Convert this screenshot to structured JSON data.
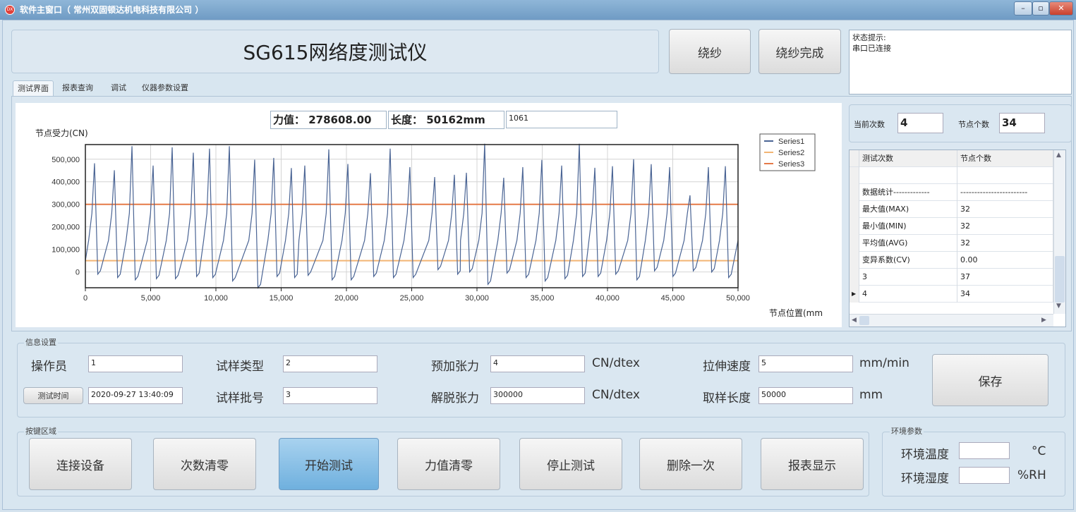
{
  "window": {
    "title": "软件主窗口（ 常州双固顿达机电科技有限公司 ）",
    "icon": "app-logo-icon",
    "controls": [
      "minimize-icon",
      "maximize-icon",
      "close-icon"
    ]
  },
  "header": {
    "title": "SG615网络度测试仪",
    "wind_button": "绕纱",
    "wind_done_button": "绕纱完成",
    "status_label": "状态提示:",
    "status_text": "串口已连接"
  },
  "tabs": [
    {
      "label": "测试界面",
      "selected": true
    },
    {
      "label": "报表查询"
    },
    {
      "label": "调试"
    },
    {
      "label": "仪器参数设置"
    }
  ],
  "readouts": {
    "force_label": "力值：",
    "force_value": "278608.00",
    "length_label": "长度：",
    "length_value": "50162mm",
    "extra_value": "1061"
  },
  "counters": {
    "current_label": "当前次数",
    "current_value": "4",
    "nodes_label": "节点个数",
    "nodes_value": "34"
  },
  "table": {
    "headers": [
      "测试次数",
      "节点个数"
    ],
    "rows": [
      [
        "",
        ""
      ],
      [
        "数据统计-------------",
        "------------------------"
      ],
      [
        "最大值(MAX)",
        "32"
      ],
      [
        "最小值(MIN)",
        "32"
      ],
      [
        "平均值(AVG)",
        "32"
      ],
      [
        "变异系数(CV)",
        "0.00"
      ],
      [
        "3",
        "37"
      ],
      [
        "4",
        "34"
      ]
    ],
    "current_row": 7
  },
  "info": {
    "group_title": "信息设置",
    "operator_label": "操作员",
    "operator_value": "1",
    "test_time_button": "测试时间",
    "test_time_value": "2020-09-27 13:40:09",
    "sample_type_label": "试样类型",
    "sample_type_value": "2",
    "batch_label": "试样批号",
    "batch_value": "3",
    "pretension_label": "预加张力",
    "pretension_value": "4",
    "pretension_unit": "CN/dtex",
    "release_label": "解脱张力",
    "release_value": "300000",
    "release_unit": "CN/dtex",
    "speed_label": "拉伸速度",
    "speed_value": "5",
    "speed_unit": "mm/min",
    "sample_len_label": "取样长度",
    "sample_len_value": "50000",
    "sample_len_unit": "mm",
    "save_button": "保存"
  },
  "keys": {
    "group_title": "按键区域",
    "buttons": [
      "连接设备",
      "次数清零",
      "开始测试",
      "力值清零",
      "停止测试",
      "删除一次",
      "报表显示"
    ],
    "active_index": 2
  },
  "env": {
    "group_title": "环境参数",
    "temp_label": "环境温度",
    "temp_value": "",
    "temp_unit": "°C",
    "humidity_label": "环境湿度",
    "humidity_value": "",
    "humidity_unit": "%RH"
  },
  "chart_data": {
    "type": "line",
    "ylabel": "节点受力(CN)",
    "xlabel": "节点位置(mm",
    "xlim": [
      0,
      50000
    ],
    "ylim": [
      -70000,
      565000
    ],
    "xticks": [
      0,
      5000,
      10000,
      15000,
      20000,
      25000,
      30000,
      35000,
      40000,
      45000,
      50000
    ],
    "xtick_labels": [
      "0",
      "5,000",
      "10,000",
      "15,000",
      "20,000",
      "25,000",
      "30,000",
      "35,000",
      "40,000",
      "45,000",
      "50,000"
    ],
    "yticks": [
      0,
      100000,
      200000,
      300000,
      400000,
      500000
    ],
    "ytick_labels": [
      "0",
      "100,000",
      "200,000",
      "300,000",
      "400,000",
      "500,000"
    ],
    "grid": true,
    "legend": "top-right",
    "series": [
      {
        "name": "Series1",
        "color": "#4a6494",
        "start": [
          0,
          50000
        ],
        "end": [
          50000,
          140000
        ],
        "peaks": [
          [
            700,
            482000
          ],
          [
            2220,
            451000
          ],
          [
            3570,
            558000
          ],
          [
            5190,
            472000
          ],
          [
            6650,
            553000
          ],
          [
            8270,
            529000
          ],
          [
            9510,
            547000
          ],
          [
            11030,
            558000
          ],
          [
            12970,
            498000
          ],
          [
            14430,
            506000
          ],
          [
            15780,
            461000
          ],
          [
            16810,
            472000
          ],
          [
            18650,
            544000
          ],
          [
            20110,
            479000
          ],
          [
            21840,
            438000
          ],
          [
            23350,
            547000
          ],
          [
            24860,
            465000
          ],
          [
            26760,
            421000
          ],
          [
            28270,
            431000
          ],
          [
            29190,
            440000
          ],
          [
            30590,
            569000
          ],
          [
            32050,
            418000
          ],
          [
            33510,
            465000
          ],
          [
            34970,
            497000
          ],
          [
            36490,
            472000
          ],
          [
            37840,
            569000
          ],
          [
            39030,
            462000
          ],
          [
            40380,
            469000
          ],
          [
            42000,
            500000
          ],
          [
            43350,
            478000
          ],
          [
            44760,
            465000
          ],
          [
            46320,
            340000
          ],
          [
            47730,
            465000
          ],
          [
            49030,
            469000
          ]
        ],
        "troughs": [
          -10000,
          -25000,
          -35000,
          -30000,
          -30000,
          -20000,
          -25000,
          -40000,
          -70000,
          -20000,
          -25000,
          -15000,
          -35000,
          -35000,
          -20000,
          -25000,
          -25000,
          10000,
          -10000,
          0,
          -55000,
          -5000,
          -25000,
          -40000,
          -30000,
          -20000,
          -20000,
          -10000,
          -35000,
          5000,
          -20000,
          5000,
          0,
          -25000
        ]
      },
      {
        "name": "Series2",
        "color": "#f2b574",
        "value": 50000
      },
      {
        "name": "Series3",
        "color": "#e57a48",
        "value": 300000
      }
    ]
  }
}
